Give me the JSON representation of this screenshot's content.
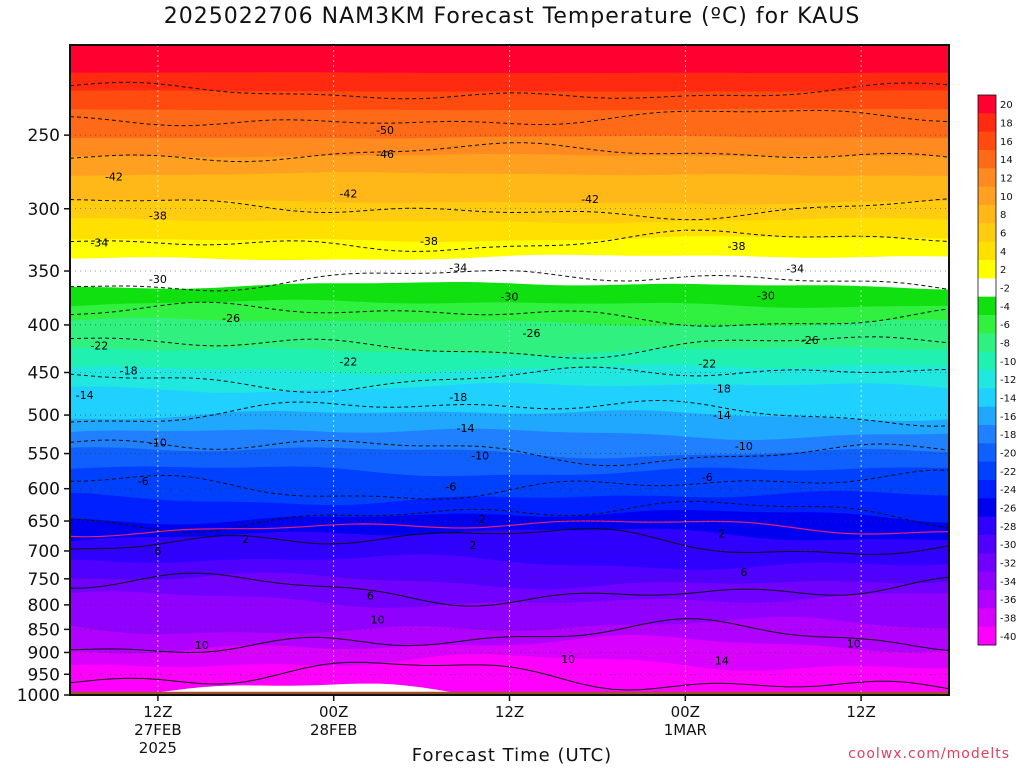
{
  "chart_data": {
    "type": "heatmap",
    "title": "2025022706 NAM3KM Forecast Temperature (ºC) for KAUS",
    "xlabel": "Forecast Time (UTC)",
    "ylabel": "",
    "x_ticks": [
      {
        "lines": [
          "12Z",
          "27FEB",
          "2025"
        ],
        "t": 6
      },
      {
        "lines": [
          "00Z",
          "28FEB"
        ],
        "t": 18
      },
      {
        "lines": [
          "12Z"
        ],
        "t": 30
      },
      {
        "lines": [
          "00Z",
          "1MAR"
        ],
        "t": 42
      },
      {
        "lines": [
          "12Z"
        ],
        "t": 54
      }
    ],
    "x_range_hours": [
      0,
      60
    ],
    "y_scale": "log",
    "y_range_hpa": [
      1000,
      200
    ],
    "y_ticks": [
      250,
      300,
      350,
      400,
      450,
      500,
      550,
      600,
      650,
      700,
      750,
      800,
      850,
      900,
      950,
      1000
    ],
    "surface_pressure_hpa": 992,
    "surface_color": "#a0522d",
    "colorbar": {
      "labels": [
        20,
        18,
        16,
        14,
        12,
        10,
        8,
        6,
        4,
        2,
        -2,
        -4,
        -6,
        -8,
        -10,
        -12,
        -14,
        -16,
        -18,
        -20,
        -22,
        -24,
        -26,
        -28,
        -30,
        -32,
        -34,
        -36,
        -38,
        -40
      ],
      "colors": [
        "#ff0030",
        "#ff2a10",
        "#ff4a10",
        "#ff6a18",
        "#ff8a20",
        "#ffa020",
        "#ffb818",
        "#ffcc10",
        "#ffe000",
        "#ffff00",
        "#ffffff",
        "#10e010",
        "#30f040",
        "#30f080",
        "#20f0b0",
        "#20e8e0",
        "#20d0ff",
        "#20a8ff",
        "#2080ff",
        "#1060ff",
        "#0040ff",
        "#0020ff",
        "#0000f0",
        "#3000ff",
        "#5000ff",
        "#7000ff",
        "#9000ff",
        "#b000ff",
        "#d800ff",
        "#ff00ff"
      ]
    },
    "freezing_level_color": "#e0207a",
    "isotherms": [
      {
        "label": "-50",
        "p": 225
      },
      {
        "label": "-46",
        "p": 240
      },
      {
        "label": "-42",
        "p": 262
      },
      {
        "label": "-38",
        "p": 300
      },
      {
        "label": "-34",
        "p": 325
      },
      {
        "label": "-30",
        "p": 358
      },
      {
        "label": "-26",
        "p": 390
      },
      {
        "label": "-22",
        "p": 420
      },
      {
        "label": "-18",
        "p": 455
      },
      {
        "label": "-14",
        "p": 495
      },
      {
        "label": "-10",
        "p": 545
      },
      {
        "label": "-6",
        "p": 595
      },
      {
        "label": "-2",
        "p": 640
      },
      {
        "label": "2",
        "p": 685
      },
      {
        "label": "6",
        "p": 770
      },
      {
        "label": "10",
        "p": 870
      },
      {
        "label": "14",
        "p": 960
      }
    ],
    "contour_labels": [
      {
        "text": "-50",
        "t": 21.5,
        "p": 247
      },
      {
        "text": "-46",
        "t": 21.5,
        "p": 262
      },
      {
        "text": "-42",
        "t": 3,
        "p": 277
      },
      {
        "text": "-42",
        "t": 19,
        "p": 289
      },
      {
        "text": "-42",
        "t": 35.5,
        "p": 293
      },
      {
        "text": "-38",
        "t": 6,
        "p": 305
      },
      {
        "text": "-38",
        "t": 24.5,
        "p": 325
      },
      {
        "text": "-38",
        "t": 45.5,
        "p": 329
      },
      {
        "text": "-34",
        "t": 2,
        "p": 326
      },
      {
        "text": "-34",
        "t": 26.5,
        "p": 347
      },
      {
        "text": "-34",
        "t": 49.5,
        "p": 348
      },
      {
        "text": "-30",
        "t": 6,
        "p": 357
      },
      {
        "text": "-30",
        "t": 30,
        "p": 373
      },
      {
        "text": "-30",
        "t": 47.5,
        "p": 372
      },
      {
        "text": "-26",
        "t": 11,
        "p": 393
      },
      {
        "text": "-26",
        "t": 31.5,
        "p": 408
      },
      {
        "text": "-26",
        "t": 50.5,
        "p": 415
      },
      {
        "text": "-22",
        "t": 2,
        "p": 421
      },
      {
        "text": "-22",
        "t": 19,
        "p": 438
      },
      {
        "text": "-22",
        "t": 43.5,
        "p": 440
      },
      {
        "text": "-18",
        "t": 4,
        "p": 448
      },
      {
        "text": "-18",
        "t": 26.5,
        "p": 478
      },
      {
        "text": "-18",
        "t": 44.5,
        "p": 468
      },
      {
        "text": "-14",
        "t": 1,
        "p": 476
      },
      {
        "text": "-14",
        "t": 27,
        "p": 516
      },
      {
        "text": "-14",
        "t": 44.5,
        "p": 500
      },
      {
        "text": "-10",
        "t": 6,
        "p": 535
      },
      {
        "text": "-10",
        "t": 28,
        "p": 553
      },
      {
        "text": "-10",
        "t": 46,
        "p": 540
      },
      {
        "text": "-6",
        "t": 5,
        "p": 589
      },
      {
        "text": "-6",
        "t": 26,
        "p": 597
      },
      {
        "text": "-6",
        "t": 43.5,
        "p": 583
      },
      {
        "text": "-2",
        "t": 28,
        "p": 647
      },
      {
        "text": "2",
        "t": 12,
        "p": 680
      },
      {
        "text": "2",
        "t": 27.5,
        "p": 690
      },
      {
        "text": "2",
        "t": 44.5,
        "p": 670
      },
      {
        "text": "6",
        "t": 6,
        "p": 700
      },
      {
        "text": "6",
        "t": 20.5,
        "p": 782
      },
      {
        "text": "6",
        "t": 46,
        "p": 737
      },
      {
        "text": "10",
        "t": 9,
        "p": 884
      },
      {
        "text": "10",
        "t": 21,
        "p": 830
      },
      {
        "text": "10",
        "t": 34,
        "p": 915
      },
      {
        "text": "10",
        "t": 53.5,
        "p": 880
      },
      {
        "text": "14",
        "t": 44.5,
        "p": 918
      }
    ],
    "credit": "coolwx.com/modelts"
  }
}
